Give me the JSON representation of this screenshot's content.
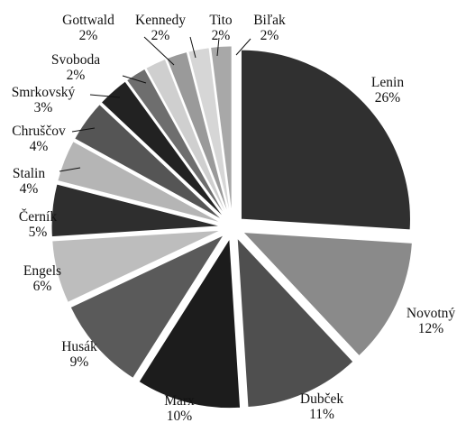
{
  "chart_data": {
    "type": "pie",
    "title": "",
    "exploded": true,
    "start_angle_deg": 0,
    "direction": "clockwise",
    "slices": [
      {
        "name": "Lenin",
        "label": "26%",
        "value": 26,
        "color": "#303030"
      },
      {
        "name": "Novotný",
        "label": "12%",
        "value": 12,
        "color": "#8a8a8a"
      },
      {
        "name": "Dubček",
        "label": "11%",
        "value": 11,
        "color": "#4f4f4f"
      },
      {
        "name": "Marx",
        "label": "10%",
        "value": 10,
        "color": "#1c1c1c"
      },
      {
        "name": "Husák",
        "label": "9%",
        "value": 9,
        "color": "#5a5a5a"
      },
      {
        "name": "Engels",
        "label": "6%",
        "value": 6,
        "color": "#bdbdbd"
      },
      {
        "name": "Černík",
        "label": "5%",
        "value": 5,
        "color": "#2e2e2e"
      },
      {
        "name": "Stalin",
        "label": "4%",
        "value": 4,
        "color": "#b5b5b5"
      },
      {
        "name": "Chruščov",
        "label": "4%",
        "value": 4,
        "color": "#555555"
      },
      {
        "name": "Smrkovský",
        "label": "3%",
        "value": 3,
        "color": "#222222"
      },
      {
        "name": "Svoboda",
        "label": "2%",
        "value": 2,
        "color": "#6e6e6e"
      },
      {
        "name": "Gottwald",
        "label": "2%",
        "value": 2,
        "color": "#cfcfcf"
      },
      {
        "name": "Kennedy",
        "label": "2%",
        "value": 2,
        "color": "#9a9a9a"
      },
      {
        "name": "Tito",
        "label": "2%",
        "value": 2,
        "color": "#d6d6d6"
      },
      {
        "name": "Biľak",
        "label": "2%",
        "value": 2,
        "color": "#a8a8a8"
      }
    ]
  }
}
